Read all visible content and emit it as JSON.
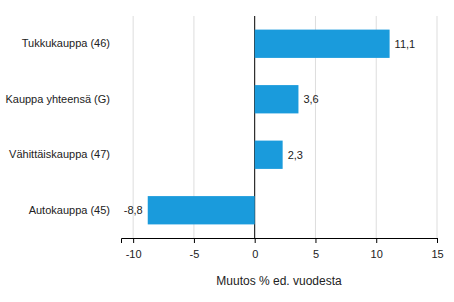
{
  "chart_data": {
    "type": "bar",
    "orientation": "horizontal",
    "categories": [
      "Tukkukauppa (46)",
      "Kauppa yhteensä (G)",
      "Vähittäiskauppa (47)",
      "Autokauppa (45)"
    ],
    "values": [
      11.1,
      3.6,
      2.3,
      -8.8
    ],
    "value_labels": [
      "11,1",
      "3,6",
      "2,3",
      "-8,8"
    ],
    "color": "#1a9bdc",
    "x_label": "Muutos % ed. vuodesta",
    "xlim": [
      -11,
      15
    ],
    "xticks": [
      -10,
      -5,
      0,
      5,
      10,
      15
    ],
    "grid": true,
    "data_labels": true
  }
}
